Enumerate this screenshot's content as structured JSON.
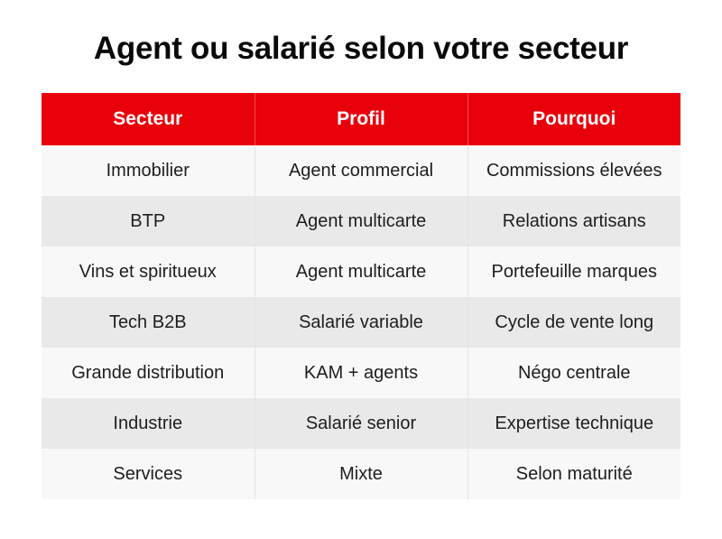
{
  "title": "Agent ou salarié selon votre secteur",
  "table": {
    "headers": [
      "Secteur",
      "Profil",
      "Pourquoi"
    ],
    "rows": [
      [
        "Immobilier",
        "Agent commercial",
        "Commissions élevées"
      ],
      [
        "BTP",
        "Agent multicarte",
        "Relations artisans"
      ],
      [
        "Vins et spiritueux",
        "Agent multicarte",
        "Portefeuille marques"
      ],
      [
        "Tech B2B",
        "Salarié variable",
        "Cycle de vente long"
      ],
      [
        "Grande distribution",
        "KAM + agents",
        "Négo centrale"
      ],
      [
        "Industrie",
        "Salarié senior",
        "Expertise technique"
      ],
      [
        "Services",
        "Mixte",
        "Selon maturité"
      ]
    ],
    "colors": {
      "header_bg": "#e8000b",
      "header_text": "#ffffff",
      "row_light": "#f8f8f8",
      "row_dark": "#e9e9e9"
    }
  }
}
